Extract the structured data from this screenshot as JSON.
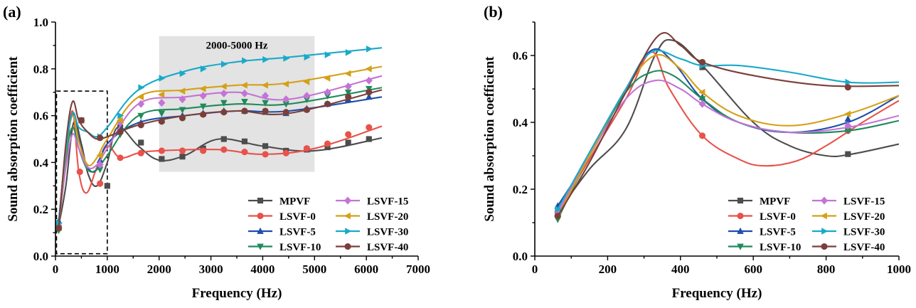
{
  "chart_data": [
    {
      "panel_label": "(a)",
      "type": "line",
      "xlabel": "Frequency (Hz)",
      "ylabel": "Sound absorption coefficient",
      "xlim": [
        0,
        7000
      ],
      "ylim": [
        0.0,
        1.0
      ],
      "xticks": [
        0,
        1000,
        2000,
        3000,
        4000,
        5000,
        6000,
        7000
      ],
      "yticks": [
        0.0,
        0.2,
        0.4,
        0.6,
        0.8,
        1.0
      ],
      "xtick_labels": [
        "0",
        "1000",
        "2000",
        "3000",
        "4000",
        "5000",
        "6000",
        "7000"
      ],
      "ytick_labels": [
        "0.0",
        "0.2",
        "0.4",
        "0.6",
        "0.8",
        "1.0"
      ],
      "grid": false,
      "legend_position": "bottom-right",
      "annotations": {
        "shaded_region": {
          "x": [
            2000,
            5000
          ],
          "y": [
            0.36,
            0.94
          ],
          "label": "2000-5000 Hz"
        },
        "dashed_box": {
          "x": [
            20,
            1000
          ],
          "y": [
            0.01,
            0.705
          ]
        }
      },
      "series": [
        {
          "name": "MPVF",
          "color": "#4d4d4d",
          "marker": "square",
          "x": [
            63,
            200,
            350,
            500,
            630,
            800,
            1000,
            1200,
            1600,
            2000,
            2500,
            3150,
            4000,
            5000,
            6300
          ],
          "y": [
            0.13,
            0.3,
            0.57,
            0.48,
            0.35,
            0.3,
            0.4,
            0.55,
            0.47,
            0.41,
            0.43,
            0.5,
            0.47,
            0.45,
            0.505
          ],
          "marker_x": [
            63,
            500,
            1000,
            1250,
            1650,
            2050,
            2450,
            2850,
            3250,
            3650,
            4050,
            4450,
            4850,
            5250,
            5650,
            6050
          ],
          "marker_y": [
            0.12,
            0.58,
            0.3,
            0.55,
            0.485,
            0.415,
            0.425,
            0.46,
            0.5,
            0.49,
            0.47,
            0.45,
            0.455,
            0.465,
            0.485,
            0.5
          ]
        },
        {
          "name": "LSVF-0",
          "color": "#e8524a",
          "marker": "circle",
          "x": [
            63,
            200,
            330,
            450,
            600,
            800,
            1000,
            1250,
            1600,
            2000,
            3150,
            4000,
            5000,
            6300
          ],
          "y": [
            0.13,
            0.4,
            0.62,
            0.36,
            0.27,
            0.38,
            0.47,
            0.42,
            0.44,
            0.45,
            0.455,
            0.435,
            0.46,
            0.555
          ],
          "marker_x": [
            63,
            470,
            860,
            1250,
            1650,
            2050,
            2450,
            2850,
            3250,
            3650,
            4050,
            4450,
            4850,
            5250,
            5650,
            6050
          ],
          "marker_y": [
            0.12,
            0.36,
            0.31,
            0.42,
            0.44,
            0.45,
            0.45,
            0.45,
            0.455,
            0.445,
            0.435,
            0.44,
            0.46,
            0.48,
            0.52,
            0.55
          ]
        },
        {
          "name": "LSVF-5",
          "color": "#1f4fa8",
          "marker": "triangle-up",
          "x": [
            63,
            200,
            330,
            450,
            620,
            800,
            1000,
            1600,
            2500,
            3500,
            4500,
            6300
          ],
          "y": [
            0.15,
            0.45,
            0.61,
            0.5,
            0.38,
            0.37,
            0.48,
            0.57,
            0.6,
            0.62,
            0.62,
            0.68
          ],
          "marker_x": [
            63,
            860,
            1250,
            1650,
            2050,
            2450,
            2850,
            3250,
            3650,
            4050,
            4450,
            4850,
            5250,
            5650,
            6050
          ],
          "marker_y": [
            0.15,
            0.41,
            0.54,
            0.57,
            0.58,
            0.6,
            0.61,
            0.62,
            0.62,
            0.615,
            0.61,
            0.63,
            0.65,
            0.67,
            0.68
          ]
        },
        {
          "name": "LSVF-10",
          "color": "#1f8a5a",
          "marker": "triangle-down",
          "x": [
            63,
            200,
            330,
            450,
            620,
            800,
            1000,
            1600,
            2500,
            3500,
            4500,
            6300
          ],
          "y": [
            0.11,
            0.42,
            0.55,
            0.46,
            0.37,
            0.37,
            0.43,
            0.6,
            0.63,
            0.65,
            0.65,
            0.72
          ],
          "marker_x": [
            63,
            860,
            1250,
            1650,
            2050,
            2450,
            2850,
            3250,
            3650,
            4050,
            4450,
            4850,
            5250,
            5650,
            6050
          ],
          "marker_y": [
            0.11,
            0.37,
            0.52,
            0.6,
            0.61,
            0.625,
            0.64,
            0.655,
            0.66,
            0.655,
            0.65,
            0.67,
            0.685,
            0.7,
            0.715
          ]
        },
        {
          "name": "LSVF-15",
          "color": "#c473d6",
          "marker": "diamond",
          "x": [
            63,
            200,
            330,
            450,
            620,
            800,
            1000,
            1600,
            2500,
            3500,
            4500,
            6300
          ],
          "y": [
            0.13,
            0.38,
            0.52,
            0.46,
            0.38,
            0.39,
            0.46,
            0.65,
            0.68,
            0.7,
            0.67,
            0.77
          ],
          "marker_x": [
            63,
            860,
            1250,
            1650,
            2050,
            2450,
            2850,
            3250,
            3650,
            4050,
            4450,
            4850,
            5250,
            5650,
            6050
          ],
          "marker_y": [
            0.13,
            0.39,
            0.57,
            0.65,
            0.655,
            0.67,
            0.685,
            0.695,
            0.695,
            0.685,
            0.67,
            0.685,
            0.7,
            0.725,
            0.75
          ]
        },
        {
          "name": "LSVF-20",
          "color": "#d4a017",
          "marker": "triangle-left",
          "x": [
            63,
            200,
            330,
            450,
            620,
            800,
            1000,
            1600,
            2500,
            3500,
            4500,
            6300
          ],
          "y": [
            0.12,
            0.44,
            0.6,
            0.49,
            0.39,
            0.42,
            0.5,
            0.68,
            0.71,
            0.73,
            0.74,
            0.81
          ],
          "marker_x": [
            63,
            860,
            1250,
            1650,
            2050,
            2450,
            2850,
            3250,
            3650,
            4050,
            4450,
            4850,
            5250,
            5650,
            6050
          ],
          "marker_y": [
            0.12,
            0.43,
            0.58,
            0.68,
            0.69,
            0.705,
            0.715,
            0.725,
            0.73,
            0.73,
            0.735,
            0.745,
            0.76,
            0.78,
            0.8
          ]
        },
        {
          "name": "LSVF-30",
          "color": "#1aa9c9",
          "marker": "triangle-right",
          "x": [
            63,
            200,
            330,
            450,
            620,
            800,
            1000,
            1600,
            2500,
            3500,
            4500,
            6300
          ],
          "y": [
            0.14,
            0.45,
            0.61,
            0.55,
            0.53,
            0.51,
            0.55,
            0.71,
            0.79,
            0.83,
            0.85,
            0.89
          ],
          "marker_x": [
            63,
            860,
            1250,
            1650,
            2050,
            2450,
            2850,
            3250,
            3650,
            4050,
            4450,
            4850,
            5250,
            5650,
            6050
          ],
          "marker_y": [
            0.14,
            0.51,
            0.6,
            0.72,
            0.76,
            0.78,
            0.8,
            0.82,
            0.835,
            0.84,
            0.845,
            0.85,
            0.86,
            0.87,
            0.885
          ]
        },
        {
          "name": "LSVF-40",
          "color": "#7b3f3a",
          "marker": "circle",
          "x": [
            63,
            200,
            330,
            450,
            620,
            800,
            1000,
            1600,
            2500,
            3500,
            4500,
            6300
          ],
          "y": [
            0.12,
            0.48,
            0.66,
            0.58,
            0.53,
            0.5,
            0.51,
            0.56,
            0.6,
            0.62,
            0.61,
            0.71
          ],
          "marker_x": [
            63,
            500,
            860,
            1250,
            1650,
            2050,
            2450,
            2850,
            3250,
            3650,
            4050,
            4450,
            4850,
            5250,
            5650,
            6050
          ],
          "marker_y": [
            0.12,
            0.58,
            0.505,
            0.53,
            0.56,
            0.575,
            0.59,
            0.605,
            0.615,
            0.62,
            0.62,
            0.615,
            0.625,
            0.65,
            0.68,
            0.7
          ]
        }
      ]
    },
    {
      "panel_label": "(b)",
      "type": "line",
      "xlabel": "Frequency (Hz)",
      "ylabel": "Sound absorption coefficient",
      "xlim": [
        0,
        1000
      ],
      "ylim": [
        0.0,
        0.7
      ],
      "xticks": [
        0,
        200,
        400,
        600,
        800,
        1000
      ],
      "yticks": [
        0.0,
        0.2,
        0.4,
        0.6
      ],
      "xtick_labels": [
        "0",
        "200",
        "400",
        "600",
        "800",
        "1000"
      ],
      "ytick_labels": [
        "0.0",
        "0.2",
        "0.4",
        "0.6"
      ],
      "grid": false,
      "legend_position": "bottom-right",
      "series": [
        {
          "name": "MPVF",
          "color": "#4d4d4d",
          "marker": "square",
          "x": [
            63,
            150,
            250,
            330,
            380,
            460,
            600,
            700,
            800,
            870,
            1000
          ],
          "y": [
            0.13,
            0.26,
            0.38,
            0.6,
            0.645,
            0.57,
            0.4,
            0.33,
            0.3,
            0.305,
            0.335
          ],
          "marker_x": [
            63,
            460,
            860
          ],
          "marker_y": [
            0.13,
            0.565,
            0.305
          ]
        },
        {
          "name": "LSVF-0",
          "color": "#e8524a",
          "marker": "circle",
          "x": [
            63,
            150,
            250,
            320,
            370,
            460,
            560,
            630,
            720,
            800,
            900,
            1000
          ],
          "y": [
            0.13,
            0.29,
            0.47,
            0.61,
            0.5,
            0.36,
            0.29,
            0.27,
            0.285,
            0.33,
            0.4,
            0.465
          ],
          "marker_x": [
            63,
            460,
            860
          ],
          "marker_y": [
            0.13,
            0.36,
            0.375
          ]
        },
        {
          "name": "LSVF-5",
          "color": "#1f4fa8",
          "marker": "triangle-up",
          "x": [
            63,
            150,
            250,
            320,
            380,
            460,
            560,
            700,
            860,
            1000
          ],
          "y": [
            0.15,
            0.3,
            0.5,
            0.615,
            0.58,
            0.47,
            0.4,
            0.37,
            0.4,
            0.48
          ],
          "marker_x": [
            63,
            460,
            860
          ],
          "marker_y": [
            0.15,
            0.475,
            0.41
          ]
        },
        {
          "name": "LSVF-10",
          "color": "#1f8a5a",
          "marker": "triangle-down",
          "x": [
            63,
            150,
            250,
            320,
            380,
            460,
            560,
            700,
            860,
            1000
          ],
          "y": [
            0.11,
            0.3,
            0.49,
            0.55,
            0.54,
            0.47,
            0.4,
            0.37,
            0.375,
            0.405
          ],
          "marker_x": [
            63,
            460,
            860
          ],
          "marker_y": [
            0.11,
            0.47,
            0.375
          ]
        },
        {
          "name": "LSVF-15",
          "color": "#c473d6",
          "marker": "diamond",
          "x": [
            63,
            150,
            250,
            330,
            400,
            460,
            560,
            700,
            860,
            1000
          ],
          "y": [
            0.13,
            0.3,
            0.47,
            0.525,
            0.5,
            0.455,
            0.4,
            0.37,
            0.385,
            0.42
          ],
          "marker_x": [
            63,
            460,
            860
          ],
          "marker_y": [
            0.13,
            0.455,
            0.39
          ]
        },
        {
          "name": "LSVF-20",
          "color": "#d4a017",
          "marker": "triangle-left",
          "x": [
            63,
            150,
            250,
            330,
            400,
            460,
            560,
            700,
            860,
            1000
          ],
          "y": [
            0.12,
            0.3,
            0.5,
            0.6,
            0.56,
            0.49,
            0.42,
            0.39,
            0.425,
            0.48
          ],
          "marker_x": [
            63,
            460,
            860
          ],
          "marker_y": [
            0.12,
            0.49,
            0.425
          ]
        },
        {
          "name": "LSVF-30",
          "color": "#1aa9c9",
          "marker": "triangle-right",
          "x": [
            63,
            150,
            250,
            320,
            400,
            460,
            560,
            700,
            860,
            1000
          ],
          "y": [
            0.14,
            0.31,
            0.5,
            0.61,
            0.59,
            0.57,
            0.57,
            0.55,
            0.52,
            0.52
          ],
          "marker_x": [
            63,
            460,
            860
          ],
          "marker_y": [
            0.14,
            0.57,
            0.52
          ]
        },
        {
          "name": "LSVF-40",
          "color": "#7b3f3a",
          "marker": "circle",
          "x": [
            63,
            150,
            250,
            340,
            400,
            460,
            600,
            800,
            1000
          ],
          "y": [
            0.12,
            0.28,
            0.49,
            0.66,
            0.63,
            0.58,
            0.54,
            0.51,
            0.51
          ],
          "marker_x": [
            63,
            460,
            860
          ],
          "marker_y": [
            0.12,
            0.58,
            0.505
          ]
        }
      ]
    }
  ]
}
